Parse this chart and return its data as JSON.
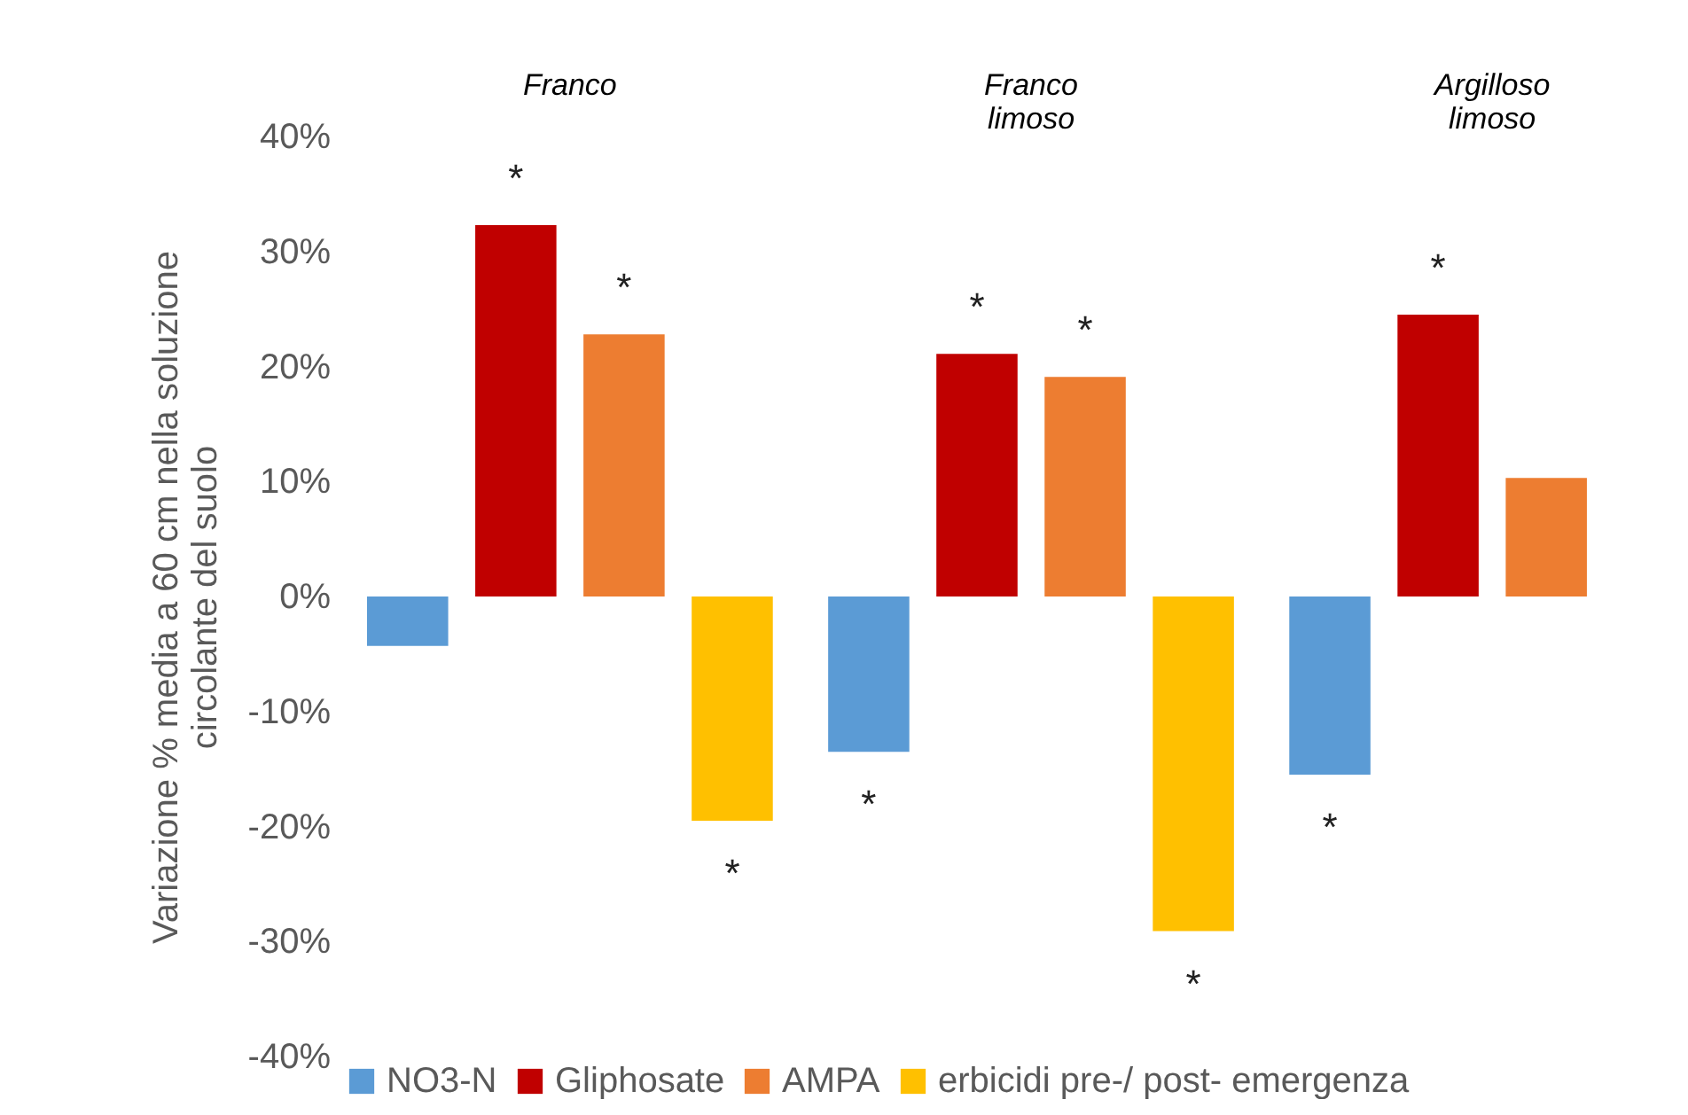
{
  "chart_data": {
    "type": "bar",
    "ylabel": "Variazione % media a 60 cm nella soluzione\ncircolante del suolo",
    "categories": [
      "Franco",
      "Franco\nlimoso",
      "Argilloso\nlimoso"
    ],
    "series": [
      {
        "name": "NO3-N",
        "color": "#5b9bd5",
        "values": [
          -4.3,
          -13.5,
          -15.5
        ],
        "value_labels": [
          null,
          "*",
          "*"
        ]
      },
      {
        "name": "Gliphosate",
        "color": "#c00000",
        "values": [
          32.3,
          21.1,
          24.5
        ],
        "value_labels": [
          "*",
          "*",
          "*"
        ]
      },
      {
        "name": "AMPA",
        "color": "#ed7d31",
        "values": [
          22.8,
          19.1,
          10.3
        ],
        "value_labels": [
          "*",
          "*",
          null
        ]
      },
      {
        "name": "erbicidi pre-/ post- emergenza",
        "color": "#ffc000",
        "values": [
          -19.5,
          -29.1,
          null
        ],
        "value_labels": [
          "*",
          "*",
          null
        ]
      }
    ],
    "ylim": [
      -40,
      40
    ],
    "yticks": [
      {
        "value": -40,
        "label": "-40%"
      },
      {
        "value": -30,
        "label": "-30%"
      },
      {
        "value": -20,
        "label": "-20%"
      },
      {
        "value": -10,
        "label": "-10%"
      },
      {
        "value": 0,
        "label": "0%"
      },
      {
        "value": 10,
        "label": "10%"
      },
      {
        "value": 20,
        "label": "20%"
      },
      {
        "value": 30,
        "label": "30%"
      },
      {
        "value": 40,
        "label": "40%"
      }
    ],
    "grid": false,
    "legend": "bottom"
  }
}
